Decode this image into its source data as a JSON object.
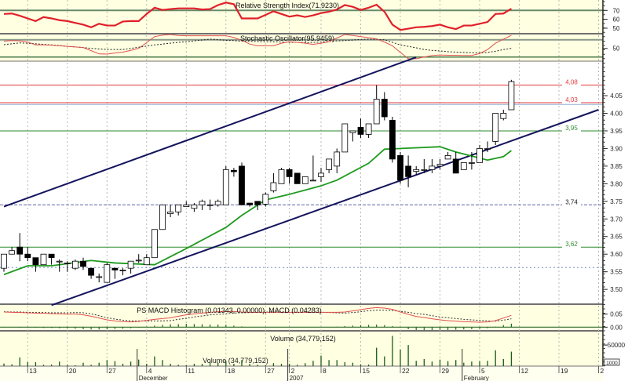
{
  "chart_data": [
    {
      "type": "candlestick",
      "panel": "price",
      "ylim": [
        3.458,
        4.148
      ],
      "yticks": [
        "3.50",
        "3.55",
        "3.60",
        "3.65",
        "3.70",
        "3.75",
        "3.80",
        "3.85",
        "3.90",
        "3.95",
        "4.00",
        "4.05"
      ],
      "candles_format": [
        "date",
        "open",
        "high",
        "low",
        "close"
      ],
      "candles": [
        [
          "2006-11-08",
          3.56,
          3.6,
          3.55,
          3.6
        ],
        [
          "2006-11-09",
          3.6,
          3.62,
          3.6,
          3.61
        ],
        [
          "2006-11-10",
          3.62,
          3.66,
          3.58,
          3.6
        ],
        [
          "2006-11-13",
          3.6,
          3.62,
          3.58,
          3.59
        ],
        [
          "2006-11-14",
          3.59,
          3.59,
          3.55,
          3.57
        ],
        [
          "2006-11-15",
          3.57,
          3.6,
          3.57,
          3.6
        ],
        [
          "2006-11-16",
          3.6,
          3.6,
          3.57,
          3.59
        ],
        [
          "2006-11-17",
          3.58,
          3.585,
          3.55,
          3.58
        ],
        [
          "2006-11-20",
          3.575,
          3.58,
          3.55,
          3.575
        ],
        [
          "2006-11-21",
          3.56,
          3.585,
          3.555,
          3.58
        ],
        [
          "2006-11-22",
          3.58,
          3.59,
          3.555,
          3.565
        ],
        [
          "2006-11-23",
          3.56,
          3.56,
          3.53,
          3.54
        ],
        [
          "2006-11-24",
          3.536,
          3.545,
          3.52,
          3.536
        ],
        [
          "2006-11-27",
          3.52,
          3.575,
          3.52,
          3.57
        ],
        [
          "2006-11-28",
          3.56,
          3.56,
          3.53,
          3.555
        ],
        [
          "2006-11-29",
          3.555,
          3.56,
          3.54,
          3.555
        ],
        [
          "2006-11-30",
          3.56,
          3.58,
          3.545,
          3.58
        ],
        [
          "2006-12-01",
          3.583,
          3.6,
          3.575,
          3.583
        ],
        [
          "2006-12-04",
          3.57,
          3.6,
          3.57,
          3.59
        ],
        [
          "2006-12-05",
          3.59,
          3.67,
          3.59,
          3.67
        ],
        [
          "2006-12-06",
          3.67,
          3.74,
          3.67,
          3.74
        ],
        [
          "2006-12-07",
          3.715,
          3.74,
          3.705,
          3.72
        ],
        [
          "2006-12-08",
          3.72,
          3.74,
          3.71,
          3.74
        ],
        [
          "2006-12-11",
          3.735,
          3.75,
          3.735,
          3.74
        ],
        [
          "2006-12-12",
          3.73,
          3.745,
          3.72,
          3.74
        ],
        [
          "2006-12-13",
          3.74,
          3.755,
          3.725,
          3.75
        ],
        [
          "2006-12-14",
          3.74,
          3.755,
          3.725,
          3.74
        ],
        [
          "2006-12-15",
          3.74,
          3.755,
          3.735,
          3.75
        ],
        [
          "2006-12-18",
          3.74,
          3.85,
          3.74,
          3.84
        ],
        [
          "2006-12-19",
          3.838,
          3.845,
          3.82,
          3.834
        ],
        [
          "2006-12-20",
          3.85,
          3.86,
          3.74,
          3.74
        ],
        [
          "2006-12-21",
          3.745,
          3.745,
          3.735,
          3.74
        ],
        [
          "2006-12-22",
          3.75,
          3.75,
          3.725,
          3.74
        ],
        [
          "2006-12-27",
          3.742,
          3.775,
          3.735,
          3.77
        ],
        [
          "2006-12-28",
          3.78,
          3.83,
          3.775,
          3.803
        ],
        [
          "2006-12-29",
          3.8,
          3.845,
          3.8,
          3.84
        ],
        [
          "2007-01-02",
          3.84,
          3.845,
          3.8,
          3.82
        ],
        [
          "2007-01-03",
          3.83,
          3.83,
          3.8,
          3.8
        ],
        [
          "2007-01-04",
          3.8,
          3.82,
          3.8,
          3.82
        ],
        [
          "2007-01-05",
          3.81,
          3.88,
          3.81,
          3.81
        ],
        [
          "2007-01-08",
          3.82,
          3.845,
          3.805,
          3.83
        ],
        [
          "2007-01-09",
          3.84,
          3.87,
          3.83,
          3.87
        ],
        [
          "2007-01-10",
          3.85,
          3.9,
          3.83,
          3.89
        ],
        [
          "2007-01-11",
          3.89,
          3.97,
          3.89,
          3.97
        ],
        [
          "2007-01-12",
          3.945,
          3.95,
          3.92,
          3.95
        ],
        [
          "2007-01-15",
          3.96,
          3.985,
          3.93,
          3.94
        ],
        [
          "2007-01-16",
          3.94,
          3.97,
          3.93,
          3.97
        ],
        [
          "2007-01-17",
          3.97,
          4.08,
          3.97,
          4.04
        ],
        [
          "2007-01-18",
          4.04,
          4.06,
          3.98,
          3.99
        ],
        [
          "2007-01-19",
          3.98,
          3.99,
          3.86,
          3.87
        ],
        [
          "2007-01-22",
          3.88,
          3.89,
          3.8,
          3.81
        ],
        [
          "2007-01-23",
          3.85,
          3.88,
          3.79,
          3.82
        ],
        [
          "2007-01-24",
          3.835,
          3.85,
          3.825,
          3.84
        ],
        [
          "2007-01-25",
          3.84,
          3.87,
          3.83,
          3.84
        ],
        [
          "2007-01-26",
          3.84,
          3.87,
          3.83,
          3.85
        ],
        [
          "2007-01-29",
          3.85,
          3.87,
          3.84,
          3.855
        ],
        [
          "2007-01-30",
          3.87,
          3.89,
          3.87,
          3.88
        ],
        [
          "2007-01-31",
          3.87,
          3.89,
          3.83,
          3.83
        ],
        [
          "2007-02-01",
          3.84,
          3.86,
          3.84,
          3.86
        ],
        [
          "2007-02-02",
          3.86,
          3.89,
          3.84,
          3.86
        ],
        [
          "2007-02-05",
          3.86,
          3.91,
          3.86,
          3.9
        ],
        [
          "2007-02-06",
          3.9,
          3.92,
          3.89,
          3.9
        ],
        [
          "2007-02-07",
          3.92,
          4.0,
          3.91,
          4.0
        ],
        [
          "2007-02-08",
          3.985,
          4.01,
          3.98,
          4.0
        ],
        [
          "2007-02-09",
          4.01,
          4.095,
          4.01,
          4.09
        ]
      ],
      "moving_average": [
        [
          "2006-11-08",
          3.542
        ],
        [
          "2006-11-13",
          3.567
        ],
        [
          "2006-11-16",
          3.567
        ],
        [
          "2006-11-23",
          3.582
        ],
        [
          "2006-11-28",
          3.575
        ],
        [
          "2006-12-05",
          3.57
        ],
        [
          "2006-12-11",
          3.616
        ],
        [
          "2006-12-18",
          3.676
        ],
        [
          "2006-12-20",
          3.71
        ],
        [
          "2006-12-27",
          3.754
        ],
        [
          "2007-01-02",
          3.77
        ],
        [
          "2007-01-08",
          3.794
        ],
        [
          "2007-01-10",
          3.81
        ],
        [
          "2007-01-16",
          3.858
        ],
        [
          "2007-01-18",
          3.898
        ],
        [
          "2007-01-29",
          3.905
        ],
        [
          "2007-01-31",
          3.89
        ],
        [
          "2007-02-06",
          3.867
        ],
        [
          "2007-02-08",
          3.877
        ],
        [
          "2007-02-09",
          3.894
        ]
      ],
      "moving_average_color": "#1e9b1e",
      "trend_lines": [
        {
          "from": [
            "2006-11-08",
            3.735
          ],
          "to": [
            "2007-01-24",
            4.159
          ],
          "color": "#14145e"
        },
        {
          "from": [
            "2006-11-16",
            3.455
          ],
          "to": [
            "2007-02-26",
            4.01
          ],
          "color": "#14145e"
        }
      ],
      "levels": [
        {
          "value": 4.08,
          "label": "4,08",
          "color": "#e03a3a",
          "style": "solid"
        },
        {
          "value": 4.03,
          "label": "4,03",
          "color": "#e03a3a",
          "style": "solid"
        },
        {
          "value": 4.025,
          "label": "",
          "color": "#8fb0d8",
          "style": "solid"
        },
        {
          "value": 3.95,
          "label": "3,95",
          "color": "#2e8b2e",
          "style": "solid"
        },
        {
          "value": 3.74,
          "label": "3,74",
          "color": "#5a64a8",
          "style": "dashed"
        },
        {
          "value": 3.62,
          "label": "3,62",
          "color": "#2e8b2e",
          "style": "solid"
        },
        {
          "value": 3.562,
          "label": "",
          "color": "#7a90c0",
          "style": "dotted"
        }
      ]
    },
    {
      "type": "line",
      "panel": "rsi",
      "title": "Relative Strength Index(71.9230)",
      "ylim": [
        43.8,
        81.7
      ],
      "yticks": [
        "70",
        "60",
        "50"
      ],
      "guide_levels": [
        70
      ],
      "color": "#e0202a",
      "values": [
        66,
        66.5,
        64,
        61,
        58,
        62.5,
        61,
        59,
        58,
        56,
        54,
        51,
        55,
        53,
        53,
        57.5,
        58,
        58,
        66,
        73,
        70.5,
        71.5,
        72.3,
        72.3,
        72.3,
        71,
        71.5,
        76,
        78.8,
        77,
        61,
        61,
        61,
        65,
        69,
        66,
        63,
        64.5,
        62.6,
        64.5,
        67,
        68.5,
        71,
        76,
        74,
        70.5,
        73,
        76.4,
        68.5,
        54,
        48,
        49.5,
        51,
        51.5,
        52.4,
        54,
        51,
        49,
        53,
        53,
        55,
        57,
        66,
        66.5,
        72
      ]
    },
    {
      "type": "line",
      "panel": "stochastic",
      "title": "Stochastic Oscillator(95.9459)",
      "ylim": [
        5.6,
        101
      ],
      "yticks": [
        "50"
      ],
      "guide_levels": [
        80,
        20
      ],
      "k_color": "#e05050",
      "k": [
        75,
        77,
        76,
        72,
        62,
        62,
        61,
        59,
        57,
        55,
        53,
        42,
        31,
        30,
        34,
        37,
        43,
        50,
        70,
        91,
        96,
        98,
        95,
        94,
        94,
        94,
        94,
        94,
        94,
        88,
        78,
        65,
        59,
        59,
        59,
        68,
        73,
        71,
        68,
        64,
        68,
        73,
        86,
        98,
        95,
        91,
        87,
        83,
        72,
        59,
        36,
        14,
        14,
        20,
        25,
        27,
        26,
        26,
        25.5,
        25.5,
        32,
        46,
        68,
        82,
        95.5
      ],
      "d": [
        63,
        66,
        69,
        68,
        66,
        64,
        62,
        60,
        57,
        55,
        53,
        50,
        48,
        46,
        46,
        46,
        50,
        54,
        58,
        62,
        65,
        68,
        71,
        73,
        76,
        79,
        82,
        80,
        78,
        77,
        75,
        74,
        74,
        73,
        73,
        72,
        71,
        71,
        70,
        71,
        72,
        74,
        76,
        77,
        79,
        81,
        82,
        81,
        80,
        71,
        62,
        57,
        52,
        46,
        43,
        41,
        38.6,
        37,
        36,
        35,
        34,
        36,
        40,
        46,
        50
      ]
    },
    {
      "type": "bar+line",
      "panel": "macd",
      "title": "PS MACD Histogram (0.01343, 0.00000), MACD (0.04283)",
      "ylim": [
        -0.014,
        0.088
      ],
      "yticks": [
        "0.05",
        "0.00"
      ],
      "macd_color": "#e05050",
      "histogram_color": "#1a6a1a",
      "macd": [
        0.058,
        0.057,
        0.056,
        0.055,
        0.054,
        0.053,
        0.052,
        0.051,
        0.05,
        0.05,
        0.047,
        0.042,
        0.035,
        0.028,
        0.024,
        0.021,
        0.02,
        0.022,
        0.026,
        0.03,
        0.033,
        0.036,
        0.042,
        0.047,
        0.051,
        0.054,
        0.057,
        0.059,
        0.06,
        0.06,
        0.058,
        0.057,
        0.057,
        0.057,
        0.057,
        0.057,
        0.057,
        0.057,
        0.057,
        0.057,
        0.057,
        0.057,
        0.057,
        0.058,
        0.062,
        0.067,
        0.072,
        0.075,
        0.073,
        0.068,
        0.058,
        0.049,
        0.041,
        0.037,
        0.032,
        0.028,
        0.025,
        0.023,
        0.021,
        0.02,
        0.019,
        0.02,
        0.025,
        0.035,
        0.045
      ],
      "signal": [
        0.059,
        0.058,
        0.058,
        0.057,
        0.056,
        0.056,
        0.055,
        0.055,
        0.055,
        0.056,
        0.055,
        0.051,
        0.044,
        0.036,
        0.031,
        0.027,
        0.024,
        0.024,
        0.024,
        0.024,
        0.024,
        0.025,
        0.03,
        0.034,
        0.039,
        0.043,
        0.047,
        0.049,
        0.051,
        0.054,
        0.055,
        0.056,
        0.057,
        0.058,
        0.058,
        0.058,
        0.057,
        0.057,
        0.057,
        0.057,
        0.057,
        0.056,
        0.055,
        0.054,
        0.056,
        0.059,
        0.063,
        0.065,
        0.065,
        0.064,
        0.06,
        0.057,
        0.052,
        0.049,
        0.044,
        0.039,
        0.036,
        0.033,
        0.03,
        0.028,
        0.026,
        0.024,
        0.023,
        0.027,
        0.032
      ],
      "histogram": [
        -0.001,
        -0.001,
        -0.002,
        -0.002,
        -0.002,
        -0.003,
        -0.003,
        -0.004,
        -0.005,
        -0.006,
        -0.008,
        -0.009,
        -0.009,
        -0.008,
        -0.007,
        -0.006,
        -0.004,
        -0.002,
        0.002,
        0.006,
        0.009,
        0.011,
        0.012,
        0.013,
        0.012,
        0.011,
        0.01,
        0.01,
        0.009,
        0.006,
        0.003,
        0.001,
        0.0,
        -0.001,
        -0.001,
        -0.001,
        0.0,
        0.0,
        0.0,
        0.0,
        0.0,
        0.001,
        0.002,
        0.004,
        0.006,
        0.008,
        0.009,
        0.01,
        0.008,
        0.004,
        -0.002,
        -0.008,
        -0.011,
        -0.012,
        -0.012,
        -0.011,
        -0.011,
        -0.01,
        -0.009,
        -0.008,
        -0.007,
        -0.004,
        0.002,
        0.008,
        0.0134
      ]
    },
    {
      "type": "bar",
      "panel": "volume",
      "title": "Volume (34,779,152)",
      "ylim": [
        0,
        83700
      ],
      "yticks": [
        "50000"
      ],
      "unit_box": "1000",
      "color": "#1a5a1a",
      "values": [
        6200,
        4300,
        20600,
        9400,
        9400,
        3200,
        3700,
        10700,
        3200,
        1900,
        8100,
        3200,
        8100,
        14400,
        11800,
        5600,
        10700,
        15500,
        5600,
        23000,
        14400,
        5600,
        3200,
        1900,
        5600,
        5600,
        10700,
        8100,
        12500,
        5600,
        14400,
        5600,
        3200,
        1900,
        6900,
        5600,
        5600,
        3200,
        6900,
        12500,
        24900,
        14400,
        14400,
        9400,
        8100,
        4300,
        3700,
        43600,
        23000,
        71700,
        39300,
        50000,
        12500,
        16900,
        10700,
        15500,
        11800,
        14400,
        8100,
        10700,
        11800,
        12500,
        37500,
        16900,
        34300
      ]
    }
  ],
  "x_axis": {
    "ticks": [
      {
        "label": "13",
        "date": "2006-11-13"
      },
      {
        "label": "20",
        "date": "2006-11-20"
      },
      {
        "label": "27",
        "date": "2006-11-27"
      },
      {
        "label": "4",
        "date": "2006-12-04"
      },
      {
        "label": "11",
        "date": "2006-12-11"
      },
      {
        "label": "18",
        "date": "2006-12-18"
      },
      {
        "label": "27",
        "date": "2006-12-27"
      },
      {
        "label": "2",
        "date": "2007-01-02"
      },
      {
        "label": "8",
        "date": "2007-01-08"
      },
      {
        "label": "15",
        "date": "2007-01-15"
      },
      {
        "label": "22",
        "date": "2007-01-22"
      },
      {
        "label": "29",
        "date": "2007-01-29"
      },
      {
        "label": "5",
        "date": "2007-02-05"
      },
      {
        "label": "12",
        "date": "2007-02-12"
      },
      {
        "label": "19",
        "date": "2007-02-19"
      },
      {
        "label": "2",
        "date": "2007-02-26"
      }
    ],
    "months": [
      {
        "label": "December",
        "date": "2006-12-01"
      },
      {
        "label": "2007",
        "date": "2007-01-02"
      },
      {
        "label": "February",
        "date": "2007-02-01"
      }
    ],
    "overlay_text": "Volume (34,779,152)"
  },
  "colors": {
    "panel_background": "#ffffe1",
    "price_background": "#ffffff",
    "grid": "#b8b8b8",
    "candle_up": "#ffffff",
    "candle_down": "#000000"
  }
}
